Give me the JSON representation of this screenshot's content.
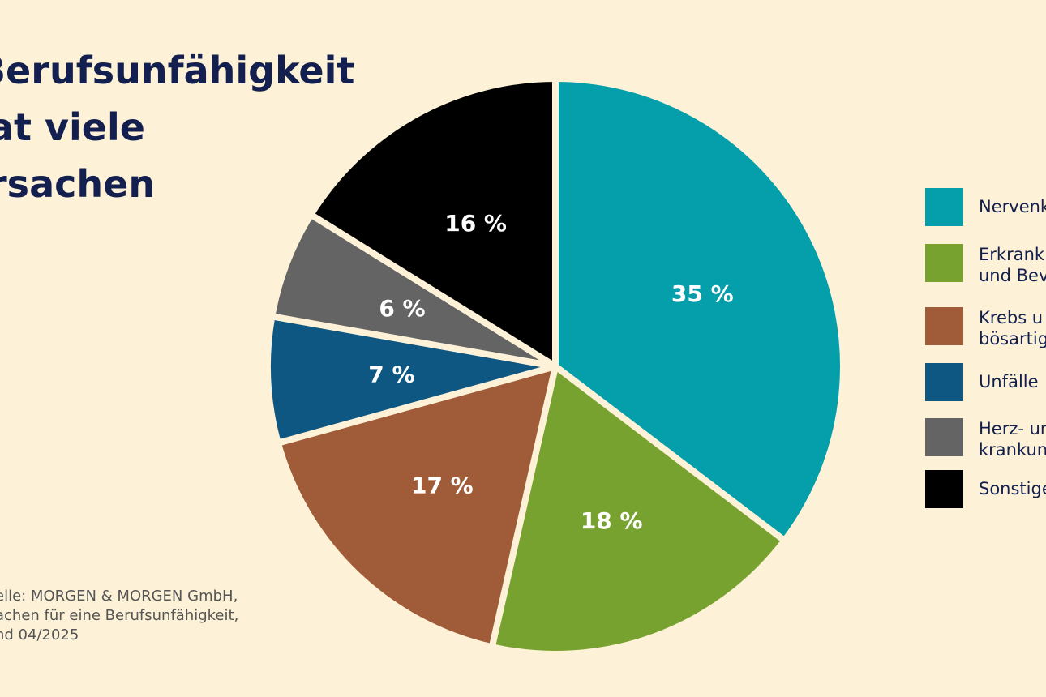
{
  "title_lines": [
    "Berufsunfähigkeit",
    "at viele",
    "rsachen"
  ],
  "chart_data": {
    "type": "pie",
    "start": "top",
    "direction": "clockwise",
    "slices": [
      {
        "label_lines": [
          "Nervenk"
        ],
        "value": 35,
        "data_label": "35 %",
        "color": "#049fab"
      },
      {
        "label_lines": [
          "Erkrank",
          "und Bev"
        ],
        "value": 18,
        "data_label": "18 %",
        "color": "#78a22f"
      },
      {
        "label_lines": [
          "Krebs u",
          "bösartig"
        ],
        "value": 17,
        "data_label": "17 %",
        "color": "#a05c38"
      },
      {
        "label_lines": [
          "Unfälle"
        ],
        "value": 7,
        "data_label": "7 %",
        "color": "#0f5783"
      },
      {
        "label_lines": [
          "Herz- ur",
          "krankun"
        ],
        "value": 6,
        "data_label": "6 %",
        "color": "#646464"
      },
      {
        "label_lines": [
          "Sonstige"
        ],
        "value": 16,
        "data_label": "16 %",
        "color": "#000000"
      }
    ],
    "legend_position": "right"
  },
  "source_lines": [
    "elle: MORGEN & MORGEN GmbH,",
    "achen für eine Berufsunfähigkeit,",
    "nd 04/2025"
  ]
}
